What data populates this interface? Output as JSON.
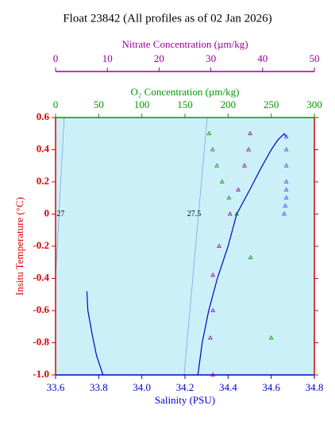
{
  "chart_data": {
    "type": "scatter",
    "title": "Float 23842  (All profiles as of 02 Jan 2026)",
    "x_label": "Salinity (PSU)",
    "y_label": "Insitu Temperature (°C)",
    "o2_label": "O₂ Concentration (µm/kg)",
    "nitrate_label": "Nitrate Concentration (µm/kg)",
    "xlim": [
      33.6,
      34.8
    ],
    "xticks": [
      33.6,
      33.8,
      {
        "value": 34,
        "label": "34.0"
      },
      34.2,
      34.4,
      34.6,
      34.8
    ],
    "ylim": [
      -1,
      0.6
    ],
    "yticks": [
      {
        "value": -1,
        "label": "-1.0"
      },
      -0.8,
      -0.6,
      -0.4,
      -0.2,
      0,
      0.2,
      0.4,
      0.6
    ],
    "o2lim": [
      0,
      300
    ],
    "o2ticks": [
      0,
      50,
      100,
      150,
      200,
      250,
      300
    ],
    "nitratelim": [
      0,
      50
    ],
    "nitrateticks": [
      0,
      10,
      20,
      30,
      40,
      50
    ],
    "x_color": "#0000cc",
    "y_color": "#dd0000",
    "o2_color": "#009900",
    "nitrate_color": "#990099",
    "background": "#ccf0f8",
    "isopycnals": [
      {
        "value": 27,
        "x": [
          33.6,
          33.64
        ],
        "y": [
          -0.4,
          0.6
        ],
        "label_x": 33.605,
        "label_y": 0
      },
      {
        "value": 27.5,
        "x": [
          34.196,
          34.303
        ],
        "y": [
          -1,
          0.6
        ],
        "label_x": 34.21,
        "label_y": 0
      }
    ],
    "series": [
      {
        "mode": "line",
        "axis": "x",
        "color": "#0000cc",
        "x": [
          33.745,
          33.75,
          33.77,
          33.79,
          33.82,
          null,
          34.26,
          34.28,
          34.31,
          34.35,
          34.4,
          34.44,
          34.5,
          34.55,
          34.6,
          34.63,
          34.66,
          34.67
        ],
        "y": [
          -0.48,
          -0.6,
          -0.75,
          -0.88,
          -1,
          null,
          -1,
          -0.8,
          -0.6,
          -0.4,
          -0.2,
          0,
          0.15,
          0.28,
          0.4,
          0.46,
          0.5,
          0.48
        ]
      },
      {
        "mode": "scatter",
        "axis": "x",
        "color": "#4444ff",
        "x": [
          34.67,
          34.67,
          34.67,
          34.67,
          34.67,
          34.67,
          34.665,
          34.66
        ],
        "y": [
          0.48,
          0.4,
          0.3,
          0.2,
          0.15,
          0.1,
          0.05,
          0
        ]
      },
      {
        "mode": "scatter",
        "axis": "o2",
        "color": "#009900",
        "x": [
          178,
          182,
          187,
          193,
          201,
          210,
          226,
          250
        ],
        "y": [
          0.5,
          0.4,
          0.3,
          0.2,
          0.1,
          0,
          -0.27,
          -0.77
        ]
      },
      {
        "mode": "scatter",
        "axis": "nitrate",
        "color": "#990099",
        "x": [
          37.6,
          37.3,
          36.5,
          35.3,
          33.7,
          31.6,
          30.4,
          30.4,
          29.9,
          30.4
        ],
        "y": [
          0.5,
          0.4,
          0.3,
          0.15,
          0,
          -0.2,
          -0.38,
          -0.6,
          -0.77,
          -1
        ]
      }
    ]
  }
}
